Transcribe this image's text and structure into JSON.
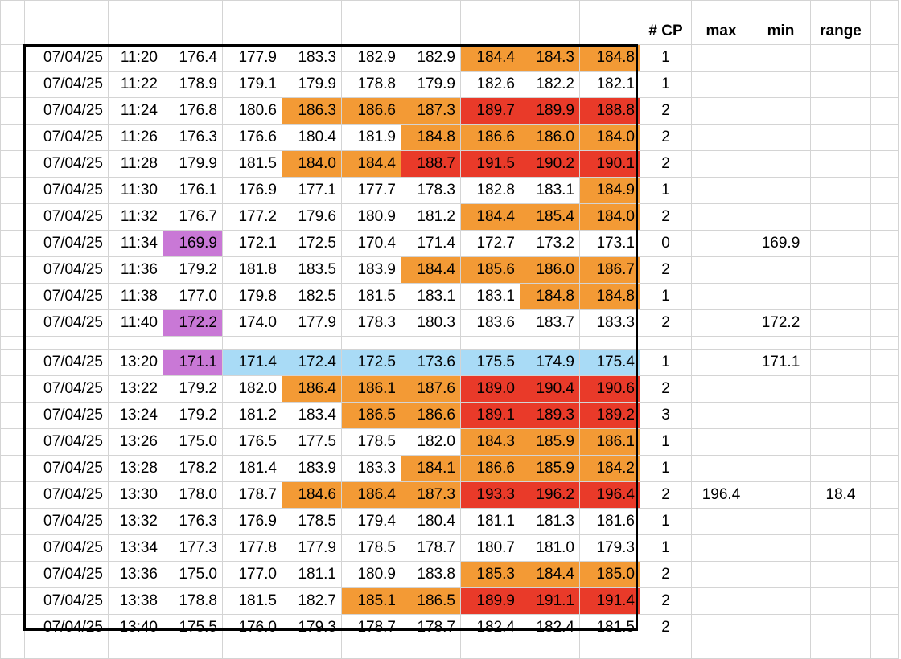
{
  "headers": {
    "cp": "# CP",
    "max": "max",
    "min": "min",
    "range": "range"
  },
  "block1": [
    {
      "date": "07/04/25",
      "time": "11:20",
      "values": [
        "176.4",
        "177.9",
        "183.3",
        "182.9",
        "182.9",
        "184.4",
        "184.3",
        "184.8"
      ],
      "colors": [
        "",
        "",
        "",
        "",
        "",
        "o",
        "o",
        "o"
      ],
      "cp": "1",
      "max": "",
      "min": "",
      "range": ""
    },
    {
      "date": "07/04/25",
      "time": "11:22",
      "values": [
        "178.9",
        "179.1",
        "179.9",
        "178.8",
        "179.9",
        "182.6",
        "182.2",
        "182.1"
      ],
      "colors": [
        "",
        "",
        "",
        "",
        "",
        "",
        "",
        ""
      ],
      "cp": "1",
      "max": "",
      "min": "",
      "range": ""
    },
    {
      "date": "07/04/25",
      "time": "11:24",
      "values": [
        "176.8",
        "180.6",
        "186.3",
        "186.6",
        "187.3",
        "189.7",
        "189.9",
        "188.8"
      ],
      "colors": [
        "",
        "",
        "o",
        "o",
        "o",
        "r",
        "r",
        "r"
      ],
      "cp": "2",
      "max": "",
      "min": "",
      "range": ""
    },
    {
      "date": "07/04/25",
      "time": "11:26",
      "values": [
        "176.3",
        "176.6",
        "180.4",
        "181.9",
        "184.8",
        "186.6",
        "186.0",
        "184.0"
      ],
      "colors": [
        "",
        "",
        "",
        "",
        "o",
        "o",
        "o",
        "o"
      ],
      "cp": "2",
      "max": "",
      "min": "",
      "range": ""
    },
    {
      "date": "07/04/25",
      "time": "11:28",
      "values": [
        "179.9",
        "181.5",
        "184.0",
        "184.4",
        "188.7",
        "191.5",
        "190.2",
        "190.1"
      ],
      "colors": [
        "",
        "",
        "o",
        "o",
        "r",
        "r",
        "r",
        "r"
      ],
      "cp": "2",
      "max": "",
      "min": "",
      "range": ""
    },
    {
      "date": "07/04/25",
      "time": "11:30",
      "values": [
        "176.1",
        "176.9",
        "177.1",
        "177.7",
        "178.3",
        "182.8",
        "183.1",
        "184.9"
      ],
      "colors": [
        "",
        "",
        "",
        "",
        "",
        "",
        "",
        "o"
      ],
      "cp": "1",
      "max": "",
      "min": "",
      "range": ""
    },
    {
      "date": "07/04/25",
      "time": "11:32",
      "values": [
        "176.7",
        "177.2",
        "179.6",
        "180.9",
        "181.2",
        "184.4",
        "185.4",
        "184.0"
      ],
      "colors": [
        "",
        "",
        "",
        "",
        "",
        "o",
        "o",
        "o"
      ],
      "cp": "2",
      "max": "",
      "min": "",
      "range": ""
    },
    {
      "date": "07/04/25",
      "time": "11:34",
      "values": [
        "169.9",
        "172.1",
        "172.5",
        "170.4",
        "171.4",
        "172.7",
        "173.2",
        "173.1"
      ],
      "colors": [
        "p",
        "",
        "",
        "",
        "",
        "",
        "",
        ""
      ],
      "cp": "0",
      "max": "",
      "min": "169.9",
      "range": ""
    },
    {
      "date": "07/04/25",
      "time": "11:36",
      "values": [
        "179.2",
        "181.8",
        "183.5",
        "183.9",
        "184.4",
        "185.6",
        "186.0",
        "186.7"
      ],
      "colors": [
        "",
        "",
        "",
        "",
        "o",
        "o",
        "o",
        "o"
      ],
      "cp": "2",
      "max": "",
      "min": "",
      "range": ""
    },
    {
      "date": "07/04/25",
      "time": "11:38",
      "values": [
        "177.0",
        "179.8",
        "182.5",
        "181.5",
        "183.1",
        "183.1",
        "184.8",
        "184.8"
      ],
      "colors": [
        "",
        "",
        "",
        "",
        "",
        "",
        "o",
        "o"
      ],
      "cp": "1",
      "max": "",
      "min": "",
      "range": ""
    },
    {
      "date": "07/04/25",
      "time": "11:40",
      "values": [
        "172.2",
        "174.0",
        "177.9",
        "178.3",
        "180.3",
        "183.6",
        "183.7",
        "183.3"
      ],
      "colors": [
        "p",
        "",
        "",
        "",
        "",
        "",
        "",
        ""
      ],
      "cp": "2",
      "max": "",
      "min": "172.2",
      "range": ""
    }
  ],
  "block2": [
    {
      "date": "07/04/25",
      "time": "13:20",
      "values": [
        "171.1",
        "171.4",
        "172.4",
        "172.5",
        "173.6",
        "175.5",
        "174.9",
        "175.4"
      ],
      "colors": [
        "p",
        "b",
        "b",
        "b",
        "b",
        "b",
        "b",
        "b"
      ],
      "cp": "1",
      "max": "",
      "min": "171.1",
      "range": ""
    },
    {
      "date": "07/04/25",
      "time": "13:22",
      "values": [
        "179.2",
        "182.0",
        "186.4",
        "186.1",
        "187.6",
        "189.0",
        "190.4",
        "190.6"
      ],
      "colors": [
        "",
        "",
        "o",
        "o",
        "o",
        "r",
        "r",
        "r"
      ],
      "cp": "2",
      "max": "",
      "min": "",
      "range": ""
    },
    {
      "date": "07/04/25",
      "time": "13:24",
      "values": [
        "179.2",
        "181.2",
        "183.4",
        "186.5",
        "186.6",
        "189.1",
        "189.3",
        "189.2"
      ],
      "colors": [
        "",
        "",
        "",
        "o",
        "o",
        "r",
        "r",
        "r"
      ],
      "cp": "3",
      "max": "",
      "min": "",
      "range": ""
    },
    {
      "date": "07/04/25",
      "time": "13:26",
      "values": [
        "175.0",
        "176.5",
        "177.5",
        "178.5",
        "182.0",
        "184.3",
        "185.9",
        "186.1"
      ],
      "colors": [
        "",
        "",
        "",
        "",
        "",
        "o",
        "o",
        "o"
      ],
      "cp": "1",
      "max": "",
      "min": "",
      "range": ""
    },
    {
      "date": "07/04/25",
      "time": "13:28",
      "values": [
        "178.2",
        "181.4",
        "183.9",
        "183.3",
        "184.1",
        "186.6",
        "185.9",
        "184.2"
      ],
      "colors": [
        "",
        "",
        "",
        "",
        "o",
        "o",
        "o",
        "o"
      ],
      "cp": "1",
      "max": "",
      "min": "",
      "range": ""
    },
    {
      "date": "07/04/25",
      "time": "13:30",
      "values": [
        "178.0",
        "178.7",
        "184.6",
        "186.4",
        "187.3",
        "193.3",
        "196.2",
        "196.4"
      ],
      "colors": [
        "",
        "",
        "o",
        "o",
        "o",
        "r",
        "r",
        "r"
      ],
      "cp": "2",
      "max": "196.4",
      "min": "",
      "range": "18.4"
    },
    {
      "date": "07/04/25",
      "time": "13:32",
      "values": [
        "176.3",
        "176.9",
        "178.5",
        "179.4",
        "180.4",
        "181.1",
        "181.3",
        "181.6"
      ],
      "colors": [
        "",
        "",
        "",
        "",
        "",
        "",
        "",
        ""
      ],
      "cp": "1",
      "max": "",
      "min": "",
      "range": ""
    },
    {
      "date": "07/04/25",
      "time": "13:34",
      "values": [
        "177.3",
        "177.8",
        "177.9",
        "178.5",
        "178.7",
        "180.7",
        "181.0",
        "179.3"
      ],
      "colors": [
        "",
        "",
        "",
        "",
        "",
        "",
        "",
        ""
      ],
      "cp": "1",
      "max": "",
      "min": "",
      "range": ""
    },
    {
      "date": "07/04/25",
      "time": "13:36",
      "values": [
        "175.0",
        "177.0",
        "181.1",
        "180.9",
        "183.8",
        "185.3",
        "184.4",
        "185.0"
      ],
      "colors": [
        "",
        "",
        "",
        "",
        "",
        "o",
        "o",
        "o"
      ],
      "cp": "2",
      "max": "",
      "min": "",
      "range": ""
    },
    {
      "date": "07/04/25",
      "time": "13:38",
      "values": [
        "178.8",
        "181.5",
        "182.7",
        "185.1",
        "186.5",
        "189.9",
        "191.1",
        "191.4"
      ],
      "colors": [
        "",
        "",
        "",
        "o",
        "o",
        "r",
        "r",
        "r"
      ],
      "cp": "2",
      "max": "",
      "min": "",
      "range": ""
    },
    {
      "date": "07/04/25",
      "time": "13:40",
      "values": [
        "175.5",
        "176.0",
        "179.3",
        "178.7",
        "178.7",
        "182.4",
        "182.4",
        "181.5"
      ],
      "colors": [
        "",
        "",
        "",
        "",
        "",
        "",
        "",
        ""
      ],
      "cp": "2",
      "max": "",
      "min": "",
      "range": ""
    }
  ],
  "colors": {
    "o": "#f39a35",
    "r": "#e93a29",
    "p": "#c978d6",
    "b": "#a9dbf6",
    "grid": "#d4d4d4"
  }
}
